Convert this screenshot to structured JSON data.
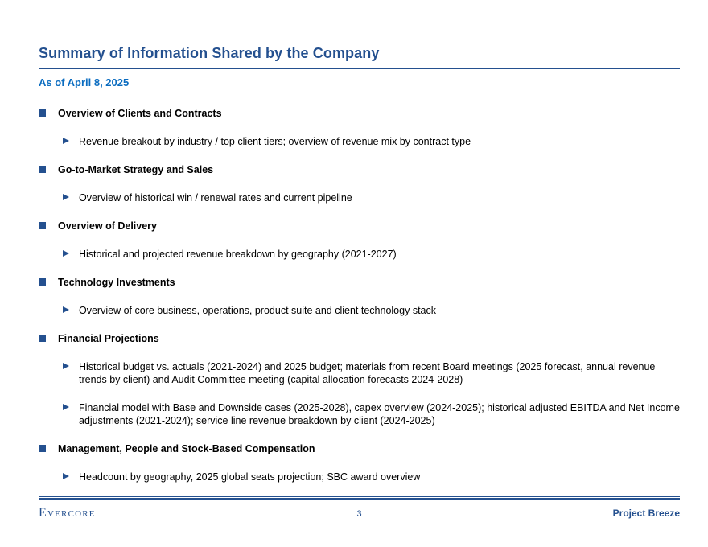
{
  "slide": {
    "title": "Summary of Information Shared by the Company",
    "date_line": "As of April 8, 2025"
  },
  "sections": [
    {
      "heading": "Overview of Clients and Contracts",
      "items": [
        "Revenue breakout by industry / top client tiers; overview of revenue mix by contract type"
      ]
    },
    {
      "heading": "Go-to-Market Strategy and Sales",
      "items": [
        "Overview of historical win / renewal rates and current pipeline"
      ]
    },
    {
      "heading": "Overview of Delivery",
      "items": [
        "Historical and projected revenue breakdown by geography (2021-2027)"
      ]
    },
    {
      "heading": "Technology Investments",
      "items": [
        "Overview of core business, operations, product suite and client technology stack"
      ]
    },
    {
      "heading": "Financial Projections",
      "items": [
        "Historical budget vs. actuals (2021-2024) and 2025 budget; materials from recent Board meetings (2025 forecast, annual revenue trends by client) and Audit Committee meeting (capital allocation forecasts 2024-2028)",
        "Financial model with Base and Downside cases (2025-2028), capex overview (2024-2025); historical adjusted EBITDA and Net Income adjustments (2021-2024); service line revenue breakdown by client (2024-2025)"
      ]
    },
    {
      "heading": "Management, People and Stock-Based Compensation",
      "items": [
        "Headcount by geography, 2025 global seats projection; SBC award overview"
      ]
    }
  ],
  "footer": {
    "logo": "Evercore",
    "page_number": "3",
    "project": "Project Breeze"
  },
  "colors": {
    "navy": "#24508f",
    "accent_blue": "#0a6cc0",
    "text": "#000000"
  }
}
